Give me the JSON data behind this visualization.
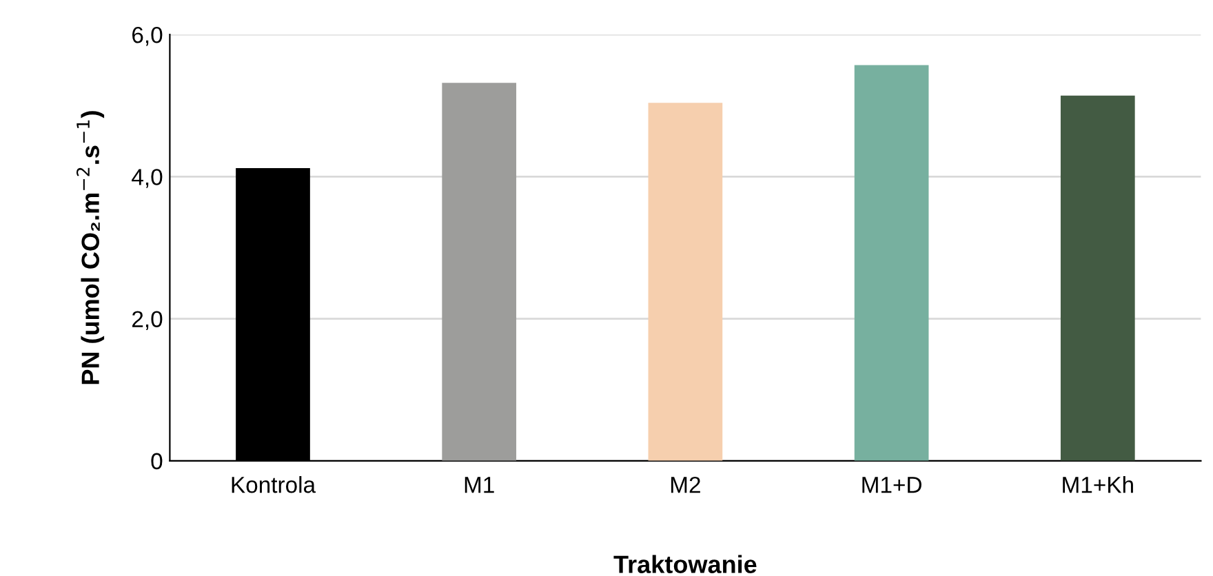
{
  "chart_data": {
    "type": "bar",
    "xlabel": "Traktowanie",
    "ylabel": "PN (umol CO₂.m$^{−2}$.s$^{−1}$)",
    "categories": [
      "Kontrola",
      "M1",
      "M2",
      "M1+D",
      "M1+Kh"
    ],
    "values": [
      4.12,
      5.32,
      5.04,
      5.57,
      5.14
    ],
    "colors": [
      "#000000",
      "#9d9d9b",
      "#f6cfae",
      "#77b09f",
      "#435b43"
    ],
    "ylim": [
      0,
      6
    ],
    "yticks": [
      {
        "value": 0,
        "label": "0"
      },
      {
        "value": 2,
        "label": "2,0"
      },
      {
        "value": 4,
        "label": "4,0"
      },
      {
        "value": 6,
        "label": "6,0"
      }
    ],
    "grid": "y"
  }
}
